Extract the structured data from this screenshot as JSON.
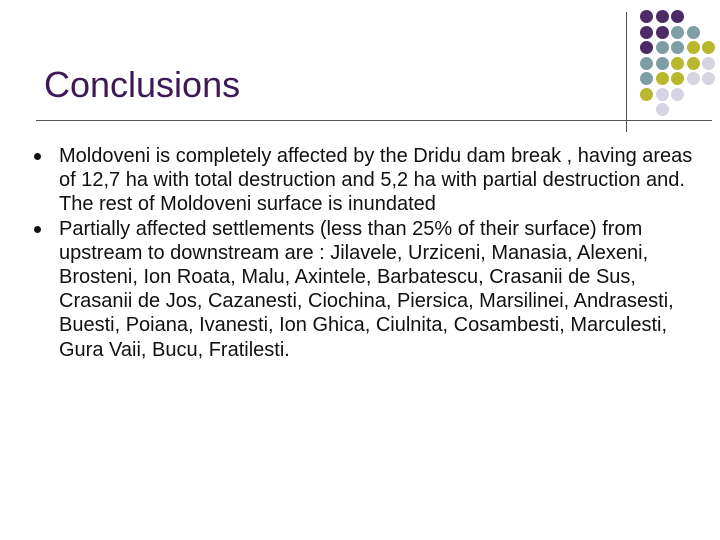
{
  "slide": {
    "title": "Conclusions",
    "bullets": [
      "Moldoveni is completely affected by the Dridu dam break , having areas of 12,7 ha with total destruction and 5,2 ha with partial destruction and. The rest of Moldoveni surface is inundated",
      "Partially affected settlements (less than 25% of their surface) from upstream to downstream are : Jilavele, Urziceni, Manasia, Alexeni, Brosteni, Ion Roata, Malu, Axintele, Barbatescu, Crasanii de Sus, Crasanii de Jos, Cazanesti, Ciochina, Piersica, Marsilinei, Andrasesti, Buesti, Poiana, Ivanesti, Ion Ghica, Ciulnita, Cosambesti, Marculesti, Gura Vaii, Bucu, Fratilesti."
    ]
  },
  "colors": {
    "title": "#3d1a57",
    "purple": "#4b2a66",
    "teal": "#7f9ea3",
    "olive": "#b8b82e",
    "lavender": "#d6d4e2"
  },
  "decoration": {
    "dot_grid": [
      [
        "purple",
        "purple",
        "purple",
        "",
        ""
      ],
      [
        "purple",
        "purple",
        "teal",
        "teal",
        ""
      ],
      [
        "purple",
        "teal",
        "teal",
        "olive",
        "olive"
      ],
      [
        "teal",
        "teal",
        "olive",
        "olive",
        "lavender"
      ],
      [
        "teal",
        "olive",
        "olive",
        "lavender",
        "lavender"
      ],
      [
        "olive",
        "lavender",
        "lavender",
        "",
        ""
      ],
      [
        "",
        "lavender",
        "",
        "",
        ""
      ]
    ]
  }
}
